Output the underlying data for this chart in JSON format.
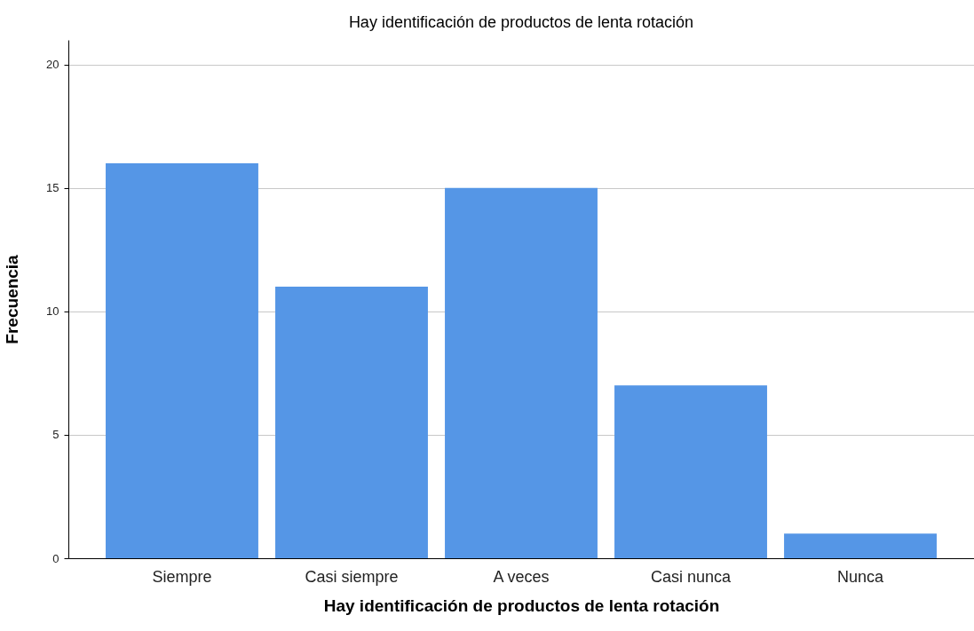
{
  "chart_data": {
    "type": "bar",
    "title": "Hay identificación de productos de lenta rotación",
    "xlabel": "Hay identificación de productos de lenta rotación",
    "ylabel": "Frecuencia",
    "categories": [
      "Siempre",
      "Casi siempre",
      "A veces",
      "Casi nunca",
      "Nunca"
    ],
    "values": [
      16,
      11,
      15,
      7,
      1
    ],
    "color": "#5596e6",
    "ylim": [
      0,
      21
    ],
    "yticks": [
      0,
      5,
      10,
      15,
      20
    ],
    "grid": "y"
  }
}
